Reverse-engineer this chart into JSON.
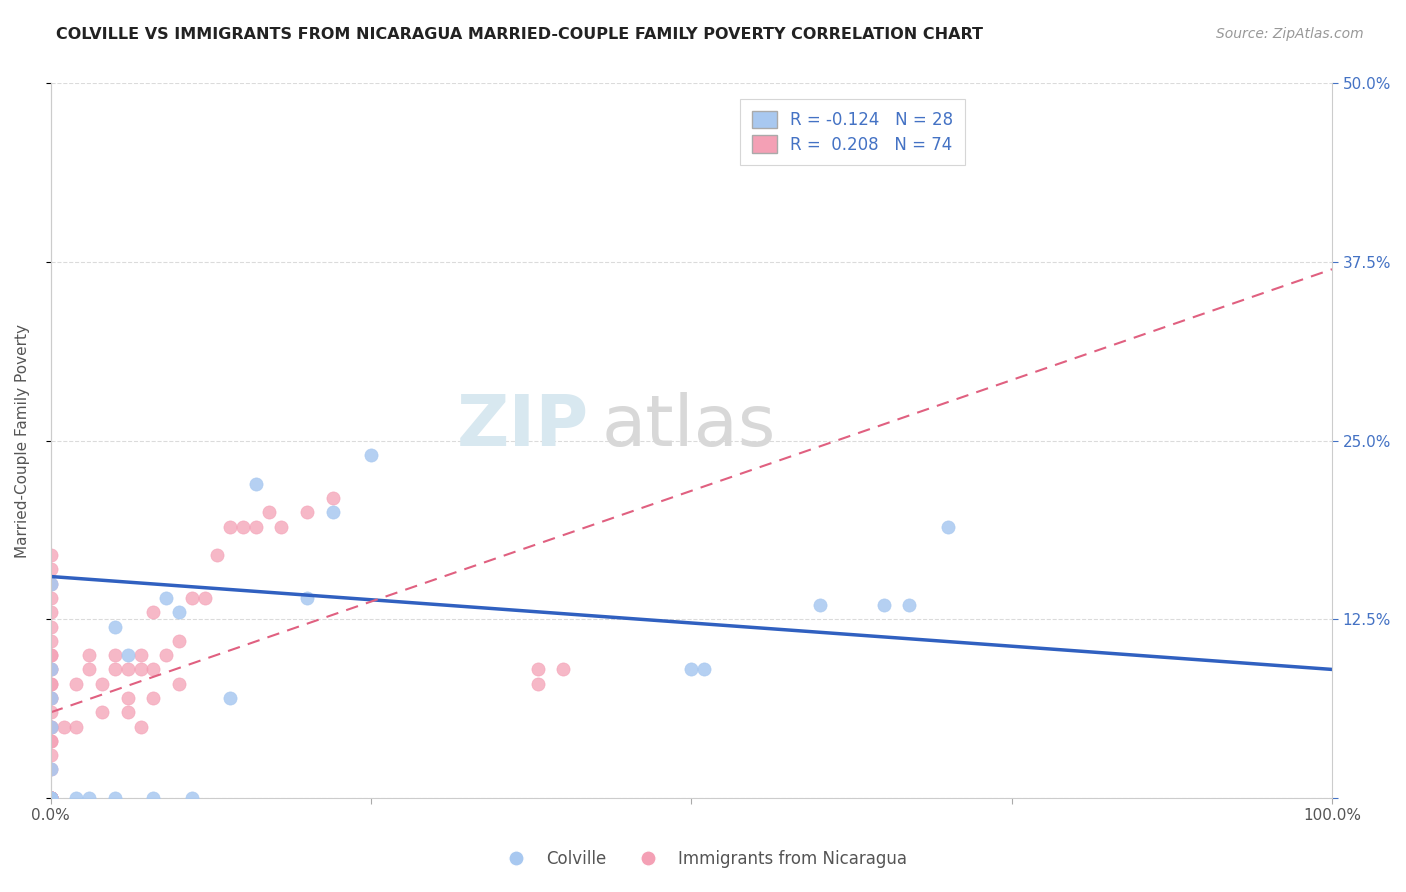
{
  "title": "COLVILLE VS IMMIGRANTS FROM NICARAGUA MARRIED-COUPLE FAMILY POVERTY CORRELATION CHART",
  "source": "Source: ZipAtlas.com",
  "ylabel": "Married-Couple Family Poverty",
  "xlabel": "",
  "xlim": [
    0,
    1.0
  ],
  "ylim": [
    0,
    0.5
  ],
  "yticks": [
    0.0,
    0.125,
    0.25,
    0.375,
    0.5
  ],
  "ytick_labels_right": [
    "",
    "12.5%",
    "25.0%",
    "37.5%",
    "50.0%"
  ],
  "xticks": [
    0.0,
    0.25,
    0.5,
    0.75,
    1.0
  ],
  "xtick_labels": [
    "0.0%",
    "",
    "",
    "",
    "100.0%"
  ],
  "legend_labels": [
    "Colville",
    "Immigrants from Nicaragua"
  ],
  "blue_R": -0.124,
  "blue_N": 28,
  "pink_R": 0.208,
  "pink_N": 74,
  "blue_color": "#a8c8f0",
  "pink_color": "#f4a0b5",
  "blue_line_color": "#3060c0",
  "pink_line_color": "#e06080",
  "background_color": "#ffffff",
  "grid_color": "#cccccc",
  "blue_scatter_x": [
    0.0,
    0.0,
    0.0,
    0.0,
    0.0,
    0.0,
    0.0,
    0.0,
    0.02,
    0.03,
    0.05,
    0.05,
    0.06,
    0.08,
    0.09,
    0.1,
    0.11,
    0.14,
    0.16,
    0.2,
    0.22,
    0.25,
    0.5,
    0.51,
    0.6,
    0.65,
    0.67,
    0.7
  ],
  "blue_scatter_y": [
    0.0,
    0.0,
    0.0,
    0.02,
    0.05,
    0.07,
    0.09,
    0.15,
    0.0,
    0.0,
    0.0,
    0.12,
    0.1,
    0.0,
    0.14,
    0.13,
    0.0,
    0.07,
    0.22,
    0.14,
    0.2,
    0.24,
    0.09,
    0.09,
    0.135,
    0.135,
    0.135,
    0.19
  ],
  "pink_scatter_x": [
    0.0,
    0.0,
    0.0,
    0.0,
    0.0,
    0.0,
    0.0,
    0.0,
    0.0,
    0.0,
    0.0,
    0.0,
    0.0,
    0.0,
    0.0,
    0.0,
    0.0,
    0.0,
    0.0,
    0.0,
    0.0,
    0.0,
    0.0,
    0.0,
    0.0,
    0.0,
    0.0,
    0.0,
    0.0,
    0.0,
    0.0,
    0.0,
    0.0,
    0.0,
    0.0,
    0.0,
    0.0,
    0.0,
    0.0,
    0.0,
    0.01,
    0.02,
    0.02,
    0.03,
    0.03,
    0.04,
    0.04,
    0.05,
    0.05,
    0.06,
    0.06,
    0.06,
    0.07,
    0.07,
    0.07,
    0.08,
    0.08,
    0.08,
    0.09,
    0.1,
    0.1,
    0.11,
    0.12,
    0.13,
    0.14,
    0.15,
    0.16,
    0.17,
    0.18,
    0.2,
    0.22,
    0.38,
    0.38,
    0.4
  ],
  "pink_scatter_y": [
    0.0,
    0.0,
    0.0,
    0.0,
    0.0,
    0.0,
    0.0,
    0.0,
    0.0,
    0.0,
    0.0,
    0.0,
    0.0,
    0.0,
    0.0,
    0.0,
    0.0,
    0.02,
    0.03,
    0.04,
    0.04,
    0.05,
    0.05,
    0.05,
    0.06,
    0.07,
    0.07,
    0.08,
    0.08,
    0.09,
    0.09,
    0.1,
    0.1,
    0.11,
    0.12,
    0.13,
    0.14,
    0.15,
    0.16,
    0.17,
    0.05,
    0.05,
    0.08,
    0.09,
    0.1,
    0.06,
    0.08,
    0.09,
    0.1,
    0.06,
    0.07,
    0.09,
    0.05,
    0.09,
    0.1,
    0.07,
    0.09,
    0.13,
    0.1,
    0.08,
    0.11,
    0.14,
    0.14,
    0.17,
    0.19,
    0.19,
    0.19,
    0.2,
    0.19,
    0.2,
    0.21,
    0.08,
    0.09,
    0.09
  ],
  "blue_line_x0": 0.0,
  "blue_line_y0": 0.155,
  "blue_line_x1": 1.0,
  "blue_line_y1": 0.09,
  "pink_line_x0": 0.0,
  "pink_line_y0": 0.06,
  "pink_line_x1": 1.0,
  "pink_line_y1": 0.37
}
